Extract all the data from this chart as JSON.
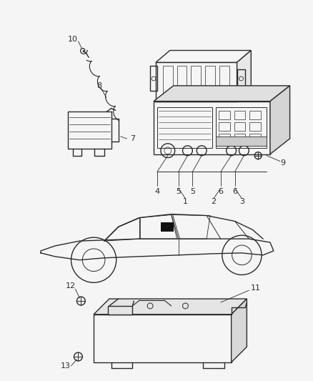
{
  "bg_color": "#f5f5f5",
  "line_color": "#2a2a2a",
  "label_fontsize": 8,
  "lw": 1.0
}
